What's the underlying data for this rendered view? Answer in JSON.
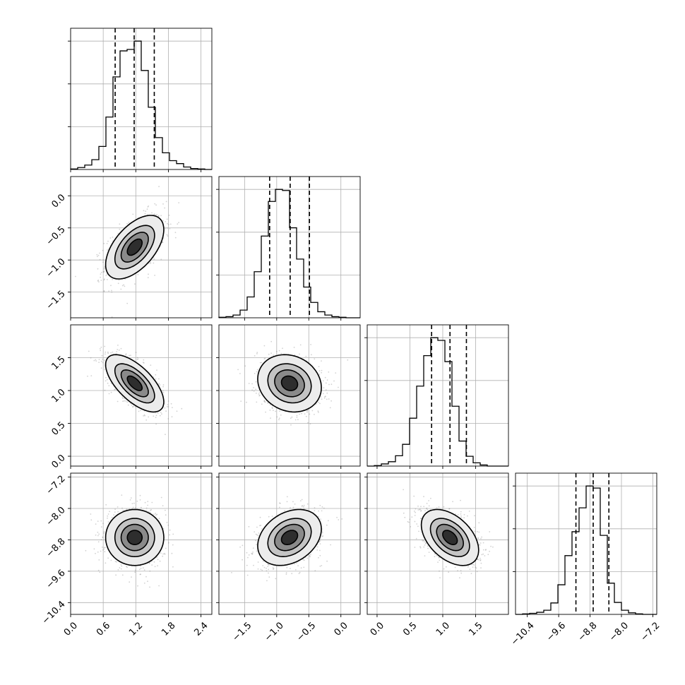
{
  "chart_data": {
    "type": "corner",
    "parameters": 4,
    "grid": true,
    "colors": {
      "hist": "#000000",
      "points": "#7f7f7f",
      "grid": "#b0b0b0",
      "quantile": "#000000"
    },
    "axes": [
      {
        "range": [
          0,
          2.6
        ],
        "ticks": [
          0.0,
          0.6,
          1.2,
          1.8,
          2.4
        ],
        "tick_labels": [
          "0.0",
          "0.6",
          "1.2",
          "1.8",
          "2.4"
        ]
      },
      {
        "range": [
          -1.9,
          0.3
        ],
        "ticks": [
          -1.5,
          -1.0,
          -0.5,
          0.0
        ],
        "tick_labels": [
          "−1.5",
          "−1.0",
          "−0.5",
          "0.0"
        ]
      },
      {
        "range": [
          -0.15,
          2.0
        ],
        "ticks": [
          0.0,
          0.5,
          1.0,
          1.5
        ],
        "tick_labels": [
          "0.0",
          "0.5",
          "1.0",
          "1.5"
        ]
      },
      {
        "range": [
          -10.7,
          -7.1
        ],
        "ticks": [
          -10.4,
          -9.6,
          -8.8,
          -8.0,
          -7.2
        ],
        "tick_labels": [
          "−10.4",
          "−9.6",
          "−8.8",
          "−8.0",
          "−7.2"
        ]
      }
    ],
    "marginals": [
      {
        "param": 0,
        "bin_edges_start": 0.0,
        "bin_width": 0.13,
        "counts": [
          1,
          4,
          9,
          20,
          47,
          107,
          189,
          242,
          245,
          262,
          202,
          127,
          65,
          34,
          18,
          12,
          5,
          2,
          1,
          0
        ],
        "quantiles": [
          0.82,
          1.17,
          1.54
        ]
      },
      {
        "param": 1,
        "bin_edges_start": -1.9,
        "bin_width": 0.11,
        "counts": [
          1,
          2,
          5,
          14,
          38,
          84,
          149,
          212,
          234,
          232,
          164,
          107,
          56,
          28,
          11,
          5,
          2,
          1,
          0,
          0
        ],
        "quantiles": [
          -1.11,
          -0.79,
          -0.49
        ]
      },
      {
        "param": 2,
        "bin_edges_start": -0.15,
        "bin_width": 0.1075,
        "counts": [
          0,
          1,
          4,
          8,
          19,
          40,
          88,
          147,
          203,
          236,
          231,
          192,
          110,
          46,
          18,
          6,
          2,
          0,
          0,
          0
        ],
        "quantiles": [
          0.83,
          1.11,
          1.36
        ]
      },
      {
        "param": 3,
        "bin_edges_start": -10.7,
        "bin_width": 0.18,
        "counts": [
          0,
          1,
          2,
          4,
          8,
          22,
          57,
          113,
          159,
          205,
          247,
          243,
          152,
          60,
          23,
          8,
          3,
          1,
          0,
          0
        ],
        "quantiles": [
          -9.16,
          -8.72,
          -8.32
        ]
      }
    ],
    "pairs": [
      {
        "x": 0,
        "y": 1,
        "mean": [
          1.18,
          -0.8
        ],
        "sd": [
          0.27,
          0.25
        ],
        "corr": 0.55
      },
      {
        "x": 0,
        "y": 2,
        "mean": [
          1.18,
          1.11
        ],
        "sd": [
          0.27,
          0.22
        ],
        "corr": -0.65
      },
      {
        "x": 1,
        "y": 2,
        "mean": [
          -0.8,
          1.11
        ],
        "sd": [
          0.25,
          0.22
        ],
        "corr": -0.15
      },
      {
        "x": 0,
        "y": 3,
        "mean": [
          1.18,
          -8.74
        ],
        "sd": [
          0.27,
          0.36
        ],
        "corr": 0.0
      },
      {
        "x": 1,
        "y": 3,
        "mean": [
          -0.8,
          -8.74
        ],
        "sd": [
          0.25,
          0.36
        ],
        "corr": 0.3
      },
      {
        "x": 2,
        "y": 3,
        "mean": [
          1.11,
          -8.74
        ],
        "sd": [
          0.22,
          0.36
        ],
        "corr": -0.45
      }
    ]
  }
}
